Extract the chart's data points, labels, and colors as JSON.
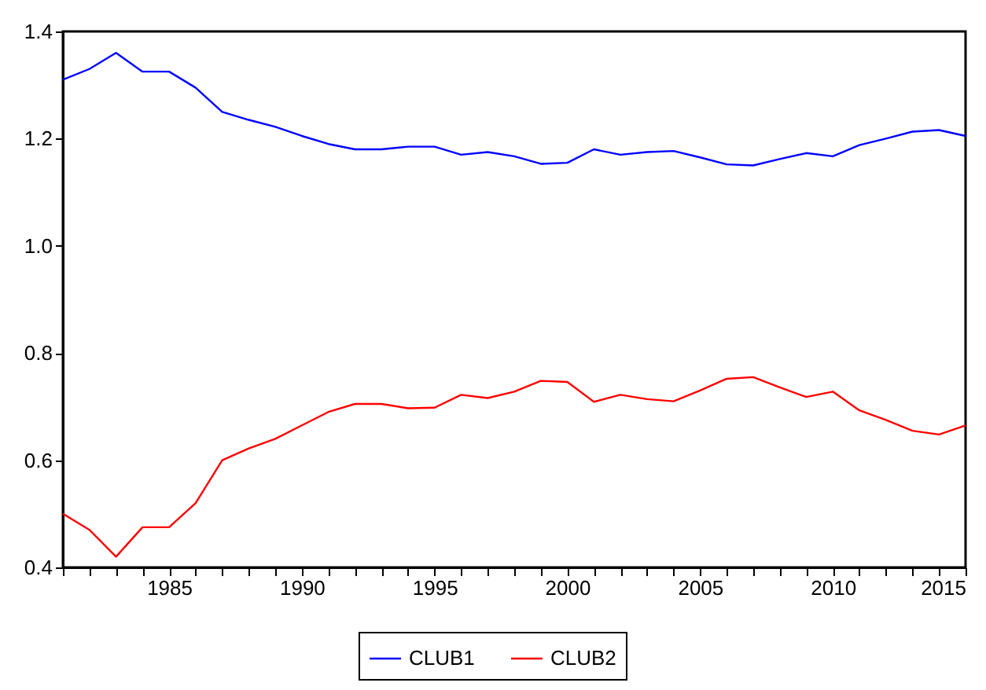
{
  "chart_data": {
    "type": "line",
    "x": [
      1981,
      1982,
      1983,
      1984,
      1985,
      1986,
      1987,
      1988,
      1989,
      1990,
      1991,
      1992,
      1993,
      1994,
      1995,
      1996,
      1997,
      1998,
      1999,
      2000,
      2001,
      2002,
      2003,
      2004,
      2005,
      2006,
      2007,
      2008,
      2009,
      2010,
      2011,
      2012,
      2013,
      2014,
      2015
    ],
    "series": [
      {
        "name": "CLUB1",
        "color": "#0000ff",
        "values": [
          1.31,
          1.33,
          1.36,
          1.325,
          1.325,
          1.295,
          1.25,
          1.235,
          1.222,
          1.205,
          1.19,
          1.18,
          1.18,
          1.185,
          1.185,
          1.17,
          1.175,
          1.167,
          1.153,
          1.155,
          1.18,
          1.17,
          1.175,
          1.177,
          1.165,
          1.152,
          1.15,
          1.162,
          1.173,
          1.167,
          1.188,
          1.2,
          1.213,
          1.216,
          1.205
        ]
      },
      {
        "name": "CLUB2",
        "color": "#ff0000",
        "values": [
          0.5,
          0.47,
          0.42,
          0.475,
          0.475,
          0.52,
          0.6,
          0.622,
          0.64,
          0.665,
          0.69,
          0.705,
          0.705,
          0.697,
          0.698,
          0.722,
          0.716,
          0.728,
          0.748,
          0.746,
          0.709,
          0.722,
          0.714,
          0.71,
          0.73,
          0.752,
          0.755,
          0.736,
          0.718,
          0.728,
          0.693,
          0.675,
          0.655,
          0.648,
          0.665
        ]
      }
    ],
    "xlim": [
      1981,
      2015
    ],
    "xticks": [
      {
        "value": 1981,
        "label": null
      },
      {
        "value": 1982,
        "label": null
      },
      {
        "value": 1983,
        "label": null
      },
      {
        "value": 1984,
        "label": null
      },
      1985,
      {
        "value": 1986,
        "label": null
      },
      {
        "value": 1987,
        "label": null
      },
      {
        "value": 1988,
        "label": null
      },
      {
        "value": 1989,
        "label": null
      },
      1990,
      {
        "value": 1991,
        "label": null
      },
      {
        "value": 1992,
        "label": null
      },
      {
        "value": 1993,
        "label": null
      },
      {
        "value": 1994,
        "label": null
      },
      1995,
      {
        "value": 1996,
        "label": null
      },
      {
        "value": 1997,
        "label": null
      },
      {
        "value": 1998,
        "label": null
      },
      {
        "value": 1999,
        "label": null
      },
      2000,
      {
        "value": 2001,
        "label": null
      },
      {
        "value": 2002,
        "label": null
      },
      {
        "value": 2003,
        "label": null
      },
      {
        "value": 2004,
        "label": null
      },
      2005,
      {
        "value": 2006,
        "label": null
      },
      {
        "value": 2007,
        "label": null
      },
      {
        "value": 2008,
        "label": null
      },
      {
        "value": 2009,
        "label": null
      },
      2010,
      {
        "value": 2011,
        "label": null
      },
      {
        "value": 2012,
        "label": null
      },
      {
        "value": 2013,
        "label": null
      },
      {
        "value": 2014,
        "label": null
      },
      2015
    ],
    "ylim": [
      0.4,
      1.4
    ],
    "yticks": [
      0.4,
      0.6,
      0.8,
      {
        "value": 1.0,
        "label": "1.0"
      },
      1.2,
      1.4
    ],
    "grid": false,
    "legend": "bottom",
    "marker": "none",
    "line_style": "solid"
  }
}
